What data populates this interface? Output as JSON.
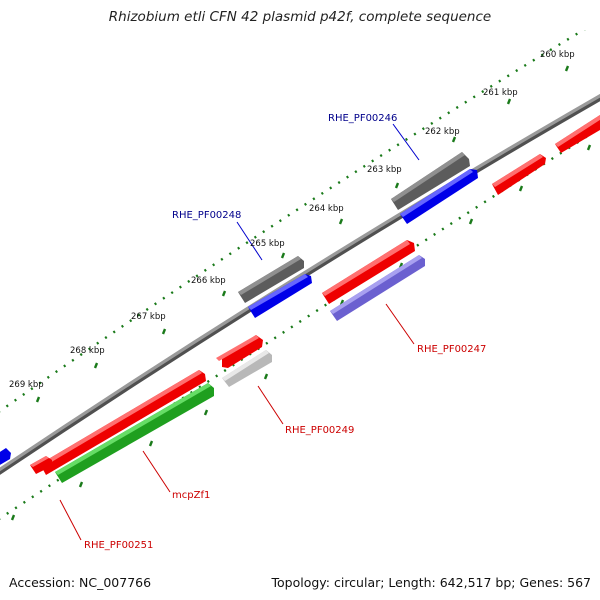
{
  "title": "Rhizobium etli CFN 42 plasmid p42f, complete sequence",
  "footer": {
    "accession": "Accession: NC_007766",
    "stats": "Topology: circular; Length: 642,517 bp; Genes: 567"
  },
  "ruler_labels": [
    "260 kbp",
    "261 kbp",
    "262 kbp",
    "263 kbp",
    "264 kbp",
    "265 kbp",
    "266 kbp",
    "267 kbp",
    "268 kbp",
    "269 kbp"
  ],
  "gene_labels": [
    {
      "text": "RHE_PF00246",
      "color": "#00008b"
    },
    {
      "text": "RHE_PF00248",
      "color": "#00008b"
    },
    {
      "text": "RHE_PF00247",
      "color": "#cc0000"
    },
    {
      "text": "RHE_PF00249",
      "color": "#cc0000"
    },
    {
      "text": "mcpZf1",
      "color": "#cc0000"
    },
    {
      "text": "RHE_PF00251",
      "color": "#cc0000"
    }
  ],
  "colors": {
    "backbone": "#808080",
    "tick": "#1a7a1a",
    "red_gene": "#ff0000",
    "blue_gene": "#0000ff",
    "dark_gray_gene": "#606060",
    "light_gray_gene": "#c0c0c0",
    "purple_gene": "#7a6fd6",
    "green_gene": "#22aa22"
  }
}
